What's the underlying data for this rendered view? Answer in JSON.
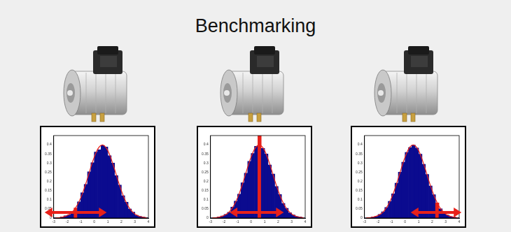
{
  "title": "Benchmarking",
  "chart_data": [
    {
      "type": "histogram",
      "bins": [
        -3,
        -2.75,
        -2.5,
        -2.25,
        -2,
        -1.75,
        -1.5,
        -1.25,
        -1,
        -0.75,
        -0.5,
        -0.25,
        0,
        0.25,
        0.5,
        0.75,
        1,
        1.25,
        1.5,
        1.75,
        2,
        2.25,
        2.5,
        2.75,
        3,
        3.25,
        3.5,
        3.75,
        4
      ],
      "values": [
        0.002,
        0.003,
        0.006,
        0.012,
        0.017,
        0.035,
        0.055,
        0.088,
        0.138,
        0.184,
        0.252,
        0.302,
        0.36,
        0.372,
        0.395,
        0.388,
        0.34,
        0.3,
        0.231,
        0.18,
        0.122,
        0.086,
        0.049,
        0.032,
        0.015,
        0.009,
        0.004,
        0.002
      ],
      "colors": [
        "#0b0b8f",
        "#0b0b8f",
        "#0b0b8f",
        "#0b0b8f",
        "#0b0b8f",
        "#0b0b8f",
        "#e8211a",
        "#0b0b8f",
        "#0b0b8f",
        "#0b0b8f",
        "#0b0b8f",
        "#0b0b8f",
        "#0b0b8f",
        "#0b0b8f",
        "#0b0b8f",
        "#0b0b8f",
        "#0b0b8f",
        "#0b0b8f",
        "#0b0b8f",
        "#0b0b8f",
        "#0b0b8f",
        "#0b0b8f",
        "#0b0b8f",
        "#0b0b8f",
        "#0b0b8f",
        "#0b0b8f",
        "#0b0b8f",
        "#0b0b8f"
      ],
      "curve": {
        "values": [
          0.001,
          0.002,
          0.005,
          0.01,
          0.019,
          0.033,
          0.057,
          0.09,
          0.134,
          0.188,
          0.248,
          0.307,
          0.356,
          0.389,
          0.399,
          0.384,
          0.347,
          0.295,
          0.236,
          0.177,
          0.125,
          0.083,
          0.051,
          0.03,
          0.016,
          0.0085,
          0.004,
          0.002
        ],
        "color": "#e8211a",
        "line_style": "solid"
      },
      "xlim": [
        -3,
        4
      ],
      "xticks": [
        -3,
        -2,
        -1,
        0,
        1,
        2,
        3,
        4
      ],
      "ylim": [
        0,
        0.45
      ],
      "yticks": [
        0,
        0.05,
        0.1,
        0.15,
        0.2,
        0.25,
        0.3,
        0.35,
        0.4
      ],
      "grid": false
    },
    {
      "type": "histogram",
      "bins": [
        -3,
        -2.75,
        -2.5,
        -2.25,
        -2,
        -1.75,
        -1.5,
        -1.25,
        -1,
        -0.75,
        -0.5,
        -0.25,
        0,
        0.25,
        0.5,
        0.75,
        1,
        1.25,
        1.5,
        1.75,
        2,
        2.25,
        2.5,
        2.75,
        3,
        3.25,
        3.5,
        3.75,
        4
      ],
      "values": [
        0.001,
        0.003,
        0.005,
        0.011,
        0.02,
        0.031,
        0.06,
        0.092,
        0.13,
        0.192,
        0.245,
        0.31,
        0.352,
        0.392,
        0.45,
        0.38,
        0.35,
        0.29,
        0.24,
        0.172,
        0.128,
        0.08,
        0.053,
        0.028,
        0.017,
        0.008,
        0.005,
        0.001
      ],
      "colors": [
        "#0b0b8f",
        "#0b0b8f",
        "#0b0b8f",
        "#0b0b8f",
        "#0b0b8f",
        "#0b0b8f",
        "#0b0b8f",
        "#0b0b8f",
        "#0b0b8f",
        "#0b0b8f",
        "#0b0b8f",
        "#0b0b8f",
        "#0b0b8f",
        "#0b0b8f",
        "#e8211a",
        "#0b0b8f",
        "#0b0b8f",
        "#0b0b8f",
        "#0b0b8f",
        "#0b0b8f",
        "#0b0b8f",
        "#0b0b8f",
        "#0b0b8f",
        "#0b0b8f",
        "#0b0b8f",
        "#0b0b8f",
        "#0b0b8f",
        "#0b0b8f"
      ],
      "curve": {
        "values": [
          0.001,
          0.002,
          0.005,
          0.01,
          0.019,
          0.033,
          0.057,
          0.09,
          0.134,
          0.188,
          0.248,
          0.307,
          0.356,
          0.389,
          0.399,
          0.384,
          0.347,
          0.295,
          0.236,
          0.177,
          0.125,
          0.083,
          0.051,
          0.03,
          0.016,
          0.0085,
          0.004,
          0.002
        ],
        "color": "#e8211a",
        "line_style": "solid"
      },
      "xlim": [
        -3,
        4
      ],
      "xticks": [
        -3,
        -2,
        -1,
        0,
        1,
        2,
        3,
        4
      ],
      "ylim": [
        0,
        0.45
      ],
      "yticks": [
        0,
        0.05,
        0.1,
        0.15,
        0.2,
        0.25,
        0.3,
        0.35,
        0.4
      ],
      "grid": false
    },
    {
      "type": "histogram",
      "bins": [
        -3,
        -2.75,
        -2.5,
        -2.25,
        -2,
        -1.75,
        -1.5,
        -1.25,
        -1,
        -0.75,
        -0.5,
        -0.25,
        0,
        0.25,
        0.5,
        0.75,
        1,
        1.25,
        1.5,
        1.75,
        2,
        2.25,
        2.5,
        2.75,
        3,
        3.25,
        3.5,
        3.75,
        4
      ],
      "values": [
        0.001,
        0.002,
        0.005,
        0.009,
        0.02,
        0.034,
        0.058,
        0.091,
        0.132,
        0.19,
        0.25,
        0.305,
        0.358,
        0.385,
        0.398,
        0.382,
        0.349,
        0.293,
        0.238,
        0.175,
        0.127,
        0.083,
        0.05,
        0.031,
        0.016,
        0.008,
        0.004,
        0.002
      ],
      "colors": [
        "#0b0b8f",
        "#0b0b8f",
        "#0b0b8f",
        "#0b0b8f",
        "#0b0b8f",
        "#0b0b8f",
        "#0b0b8f",
        "#0b0b8f",
        "#0b0b8f",
        "#0b0b8f",
        "#0b0b8f",
        "#0b0b8f",
        "#0b0b8f",
        "#0b0b8f",
        "#0b0b8f",
        "#0b0b8f",
        "#0b0b8f",
        "#0b0b8f",
        "#0b0b8f",
        "#0b0b8f",
        "#0b0b8f",
        "#e8211a",
        "#0b0b8f",
        "#0b0b8f",
        "#0b0b8f",
        "#0b0b8f",
        "#0b0b8f",
        "#0b0b8f"
      ],
      "curve": {
        "values": [
          0.001,
          0.002,
          0.005,
          0.01,
          0.019,
          0.033,
          0.057,
          0.09,
          0.134,
          0.188,
          0.248,
          0.307,
          0.356,
          0.389,
          0.399,
          0.384,
          0.347,
          0.295,
          0.236,
          0.177,
          0.125,
          0.083,
          0.051,
          0.03,
          0.016,
          0.0085,
          0.004,
          0.002
        ],
        "color": "#e8211a",
        "line_style": "solid"
      },
      "xlim": [
        -3,
        4
      ],
      "xticks": [
        -3,
        -2,
        -1,
        0,
        1,
        2,
        3,
        4
      ],
      "ylim": [
        0,
        0.45
      ],
      "yticks": [
        0,
        0.05,
        0.1,
        0.15,
        0.2,
        0.25,
        0.3,
        0.35,
        0.4
      ],
      "grid": false
    }
  ]
}
